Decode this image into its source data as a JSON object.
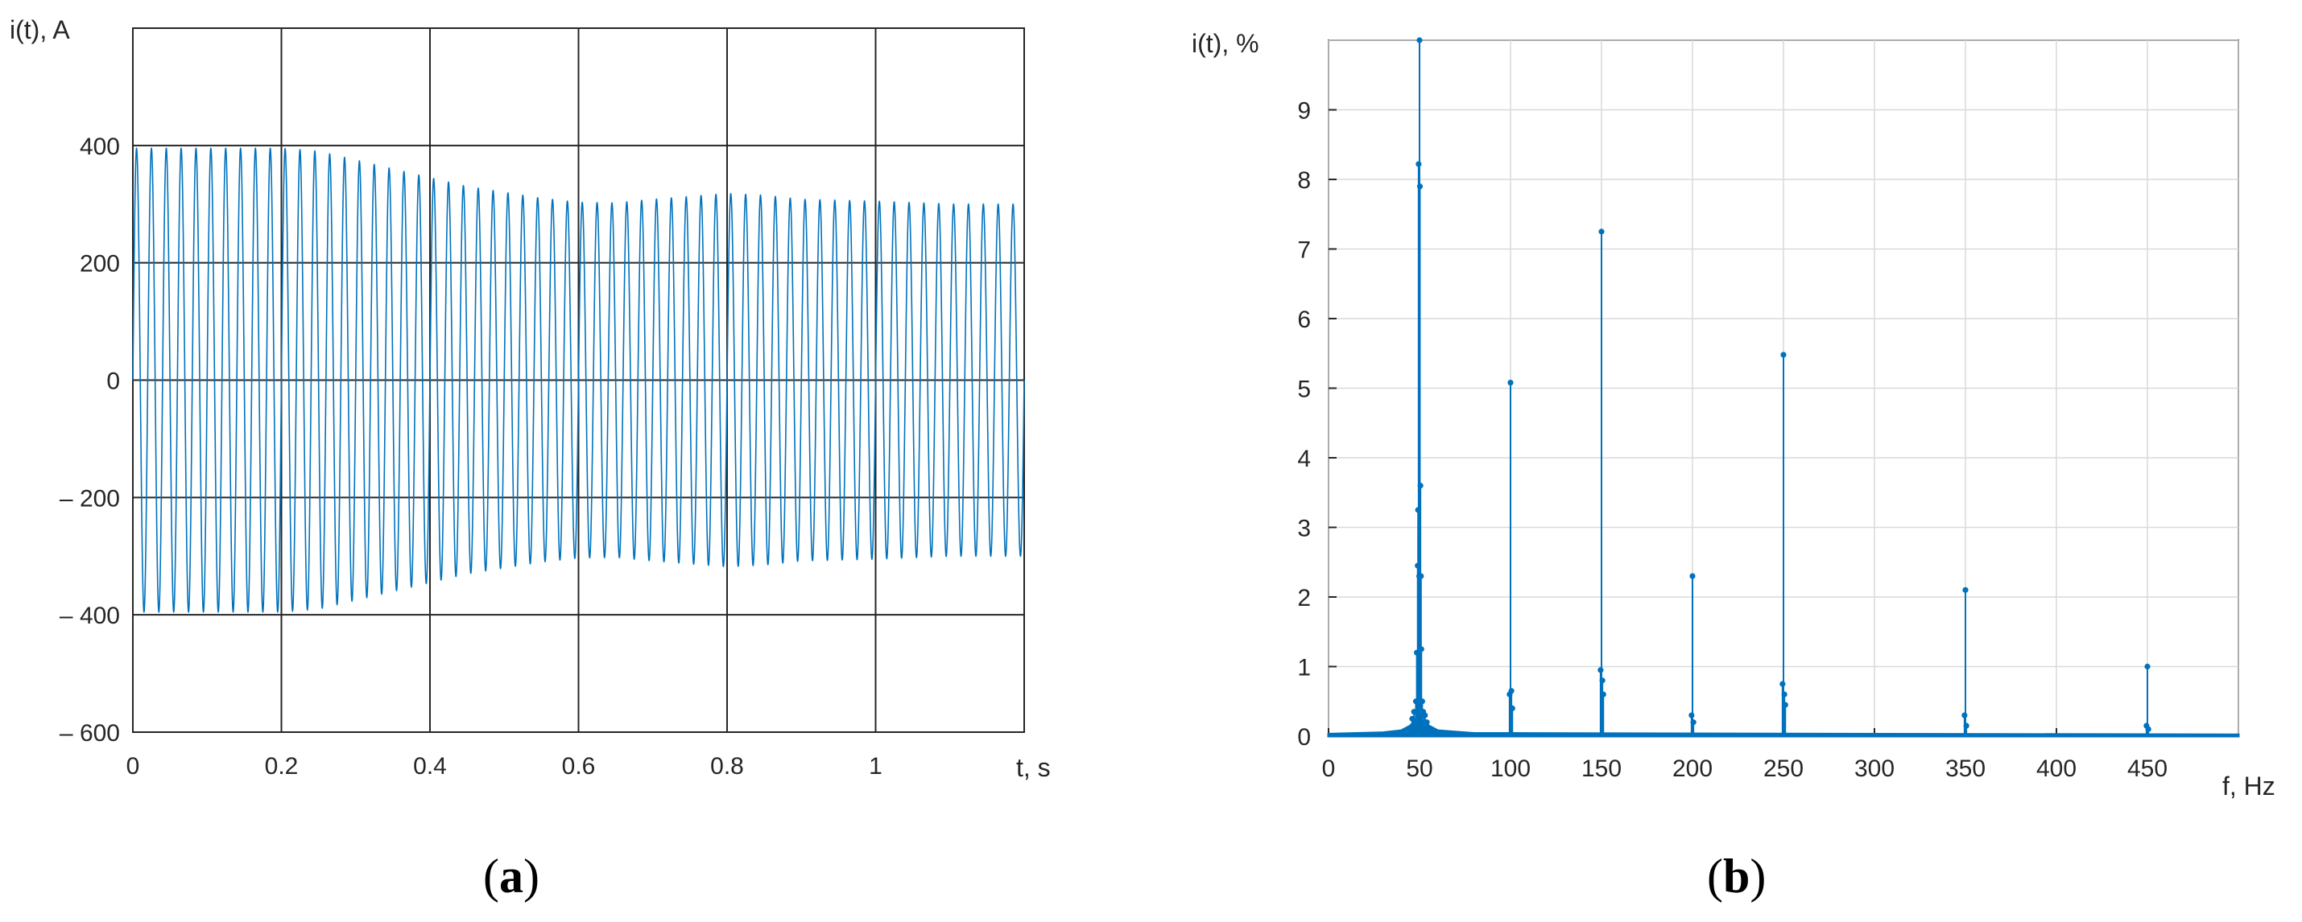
{
  "colors": {
    "series": "#0072BD",
    "grid": "#262626",
    "axis": "#262626",
    "background": "#ffffff"
  },
  "chart_data": [
    {
      "type": "line",
      "panel_label": "a",
      "xlabel": "t, s",
      "ylabel": "i(t), A",
      "xlim": [
        0,
        1.2
      ],
      "ylim": [
        -600,
        600
      ],
      "xticks": [
        0,
        0.2,
        0.4,
        0.6,
        0.8,
        1
      ],
      "xtick_labels": [
        "0",
        "0.2",
        "0.4",
        "0.6",
        "0.8",
        "1"
      ],
      "yticks": [
        -600,
        -400,
        -200,
        0,
        200,
        400
      ],
      "ytick_labels": [
        "– 600",
        "– 400",
        "– 200",
        "0",
        "200",
        "400"
      ],
      "grid": true,
      "series": [
        {
          "frequency_hz": 50,
          "envelope_t": [
            0,
            0.2,
            0.25,
            0.3,
            0.35,
            0.4,
            0.45,
            0.5,
            0.55,
            0.6,
            0.65,
            0.7,
            0.8,
            0.85,
            0.9,
            1.0,
            1.1,
            1.2
          ],
          "envelope_amplitude": [
            395,
            395,
            390,
            375,
            360,
            345,
            330,
            320,
            310,
            303,
            302,
            308,
            318,
            315,
            308,
            305,
            300,
            300
          ]
        }
      ]
    },
    {
      "type": "stem",
      "panel_label": "b",
      "xlabel": "f, Hz",
      "ylabel": "i(t), %",
      "xlim": [
        0,
        500
      ],
      "ylim": [
        0,
        10
      ],
      "xticks": [
        0,
        50,
        100,
        150,
        200,
        250,
        300,
        350,
        400,
        450
      ],
      "xtick_labels": [
        "0",
        "50",
        "100",
        "150",
        "200",
        "250",
        "300",
        "350",
        "400",
        "450"
      ],
      "yticks": [
        0,
        1,
        2,
        3,
        4,
        5,
        6,
        7,
        8,
        9
      ],
      "ytick_labels": [
        "0",
        "1",
        "2",
        "3",
        "4",
        "5",
        "6",
        "7",
        "8",
        "9"
      ],
      "grid": true,
      "x": [
        46,
        47,
        48,
        48.5,
        49,
        49.2,
        49.5,
        49.8,
        50,
        50.2,
        50.5,
        50.8,
        51,
        51.5,
        52,
        53,
        54,
        99.5,
        100,
        100.5,
        101,
        149.5,
        150,
        150.5,
        151,
        199.5,
        200,
        200.5,
        249.5,
        250,
        250.5,
        251,
        349.5,
        350,
        350.5,
        449.5,
        450,
        450.5
      ],
      "y": [
        0.25,
        0.35,
        0.5,
        1.2,
        2.45,
        3.25,
        8.22,
        2.3,
        10.0,
        7.9,
        3.6,
        2.3,
        1.25,
        0.5,
        0.35,
        0.3,
        0.2,
        0.6,
        5.08,
        0.65,
        0.4,
        0.95,
        7.25,
        0.8,
        0.6,
        0.3,
        2.3,
        0.2,
        0.75,
        5.48,
        0.6,
        0.45,
        0.3,
        2.1,
        0.15,
        0.15,
        1.0,
        0.1
      ],
      "noise_floor": [
        [
          0,
          0.03
        ],
        [
          30,
          0.05
        ],
        [
          40,
          0.08
        ],
        [
          45,
          0.15
        ],
        [
          50,
          0.3
        ],
        [
          55,
          0.15
        ],
        [
          60,
          0.08
        ],
        [
          80,
          0.04
        ],
        [
          100,
          0.04
        ],
        [
          500,
          0.02
        ]
      ]
    }
  ]
}
